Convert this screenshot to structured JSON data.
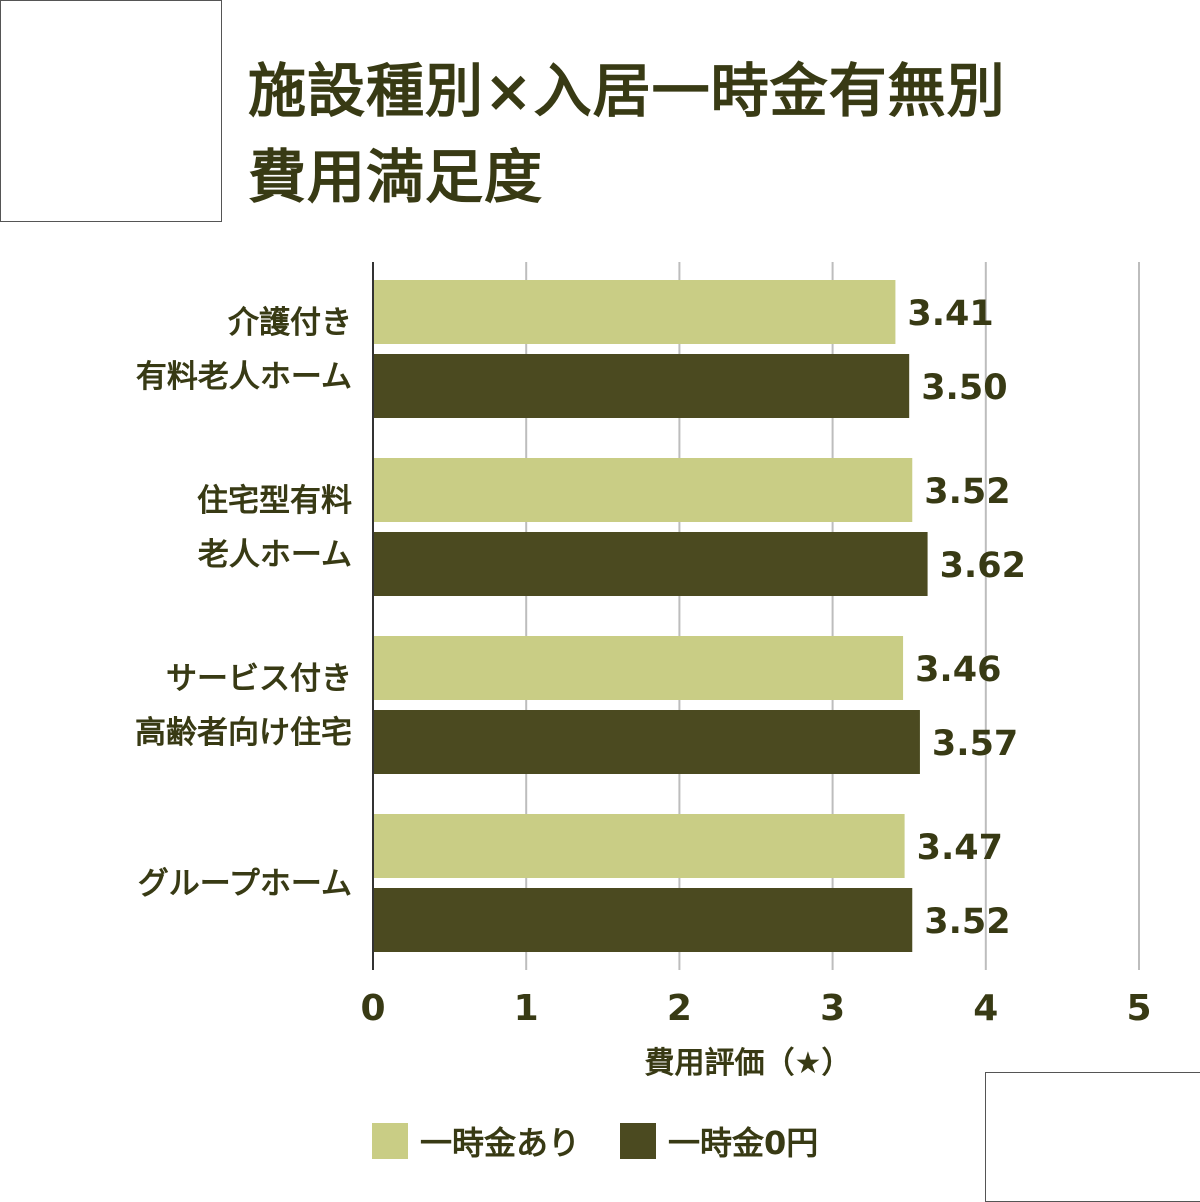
{
  "title": {
    "line1": "施設種別×入居一時金有無別",
    "line2": "費用満足度"
  },
  "colors": {
    "series1": "#c9cd85",
    "series2": "#4b4a20",
    "text": "#383a14",
    "grid": "#bdbdbd",
    "axis": "#333333"
  },
  "chart_data": {
    "type": "bar",
    "orientation": "horizontal",
    "categories": [
      [
        "介護付き",
        "有料老人ホーム"
      ],
      [
        "住宅型有料",
        "老人ホーム"
      ],
      [
        "サービス付き",
        "高齢者向け住宅"
      ],
      [
        "グループホーム"
      ]
    ],
    "series": [
      {
        "name": "一時金あり",
        "values": [
          3.41,
          3.52,
          3.46,
          3.47
        ]
      },
      {
        "name": "一時金0円",
        "values": [
          3.5,
          3.62,
          3.57,
          3.52
        ]
      }
    ],
    "xlabel": "費用評価（★）",
    "xlim": [
      0,
      5
    ],
    "ticks": [
      0,
      1,
      2,
      3,
      4,
      5
    ],
    "grid": true,
    "legend_position": "bottom"
  }
}
